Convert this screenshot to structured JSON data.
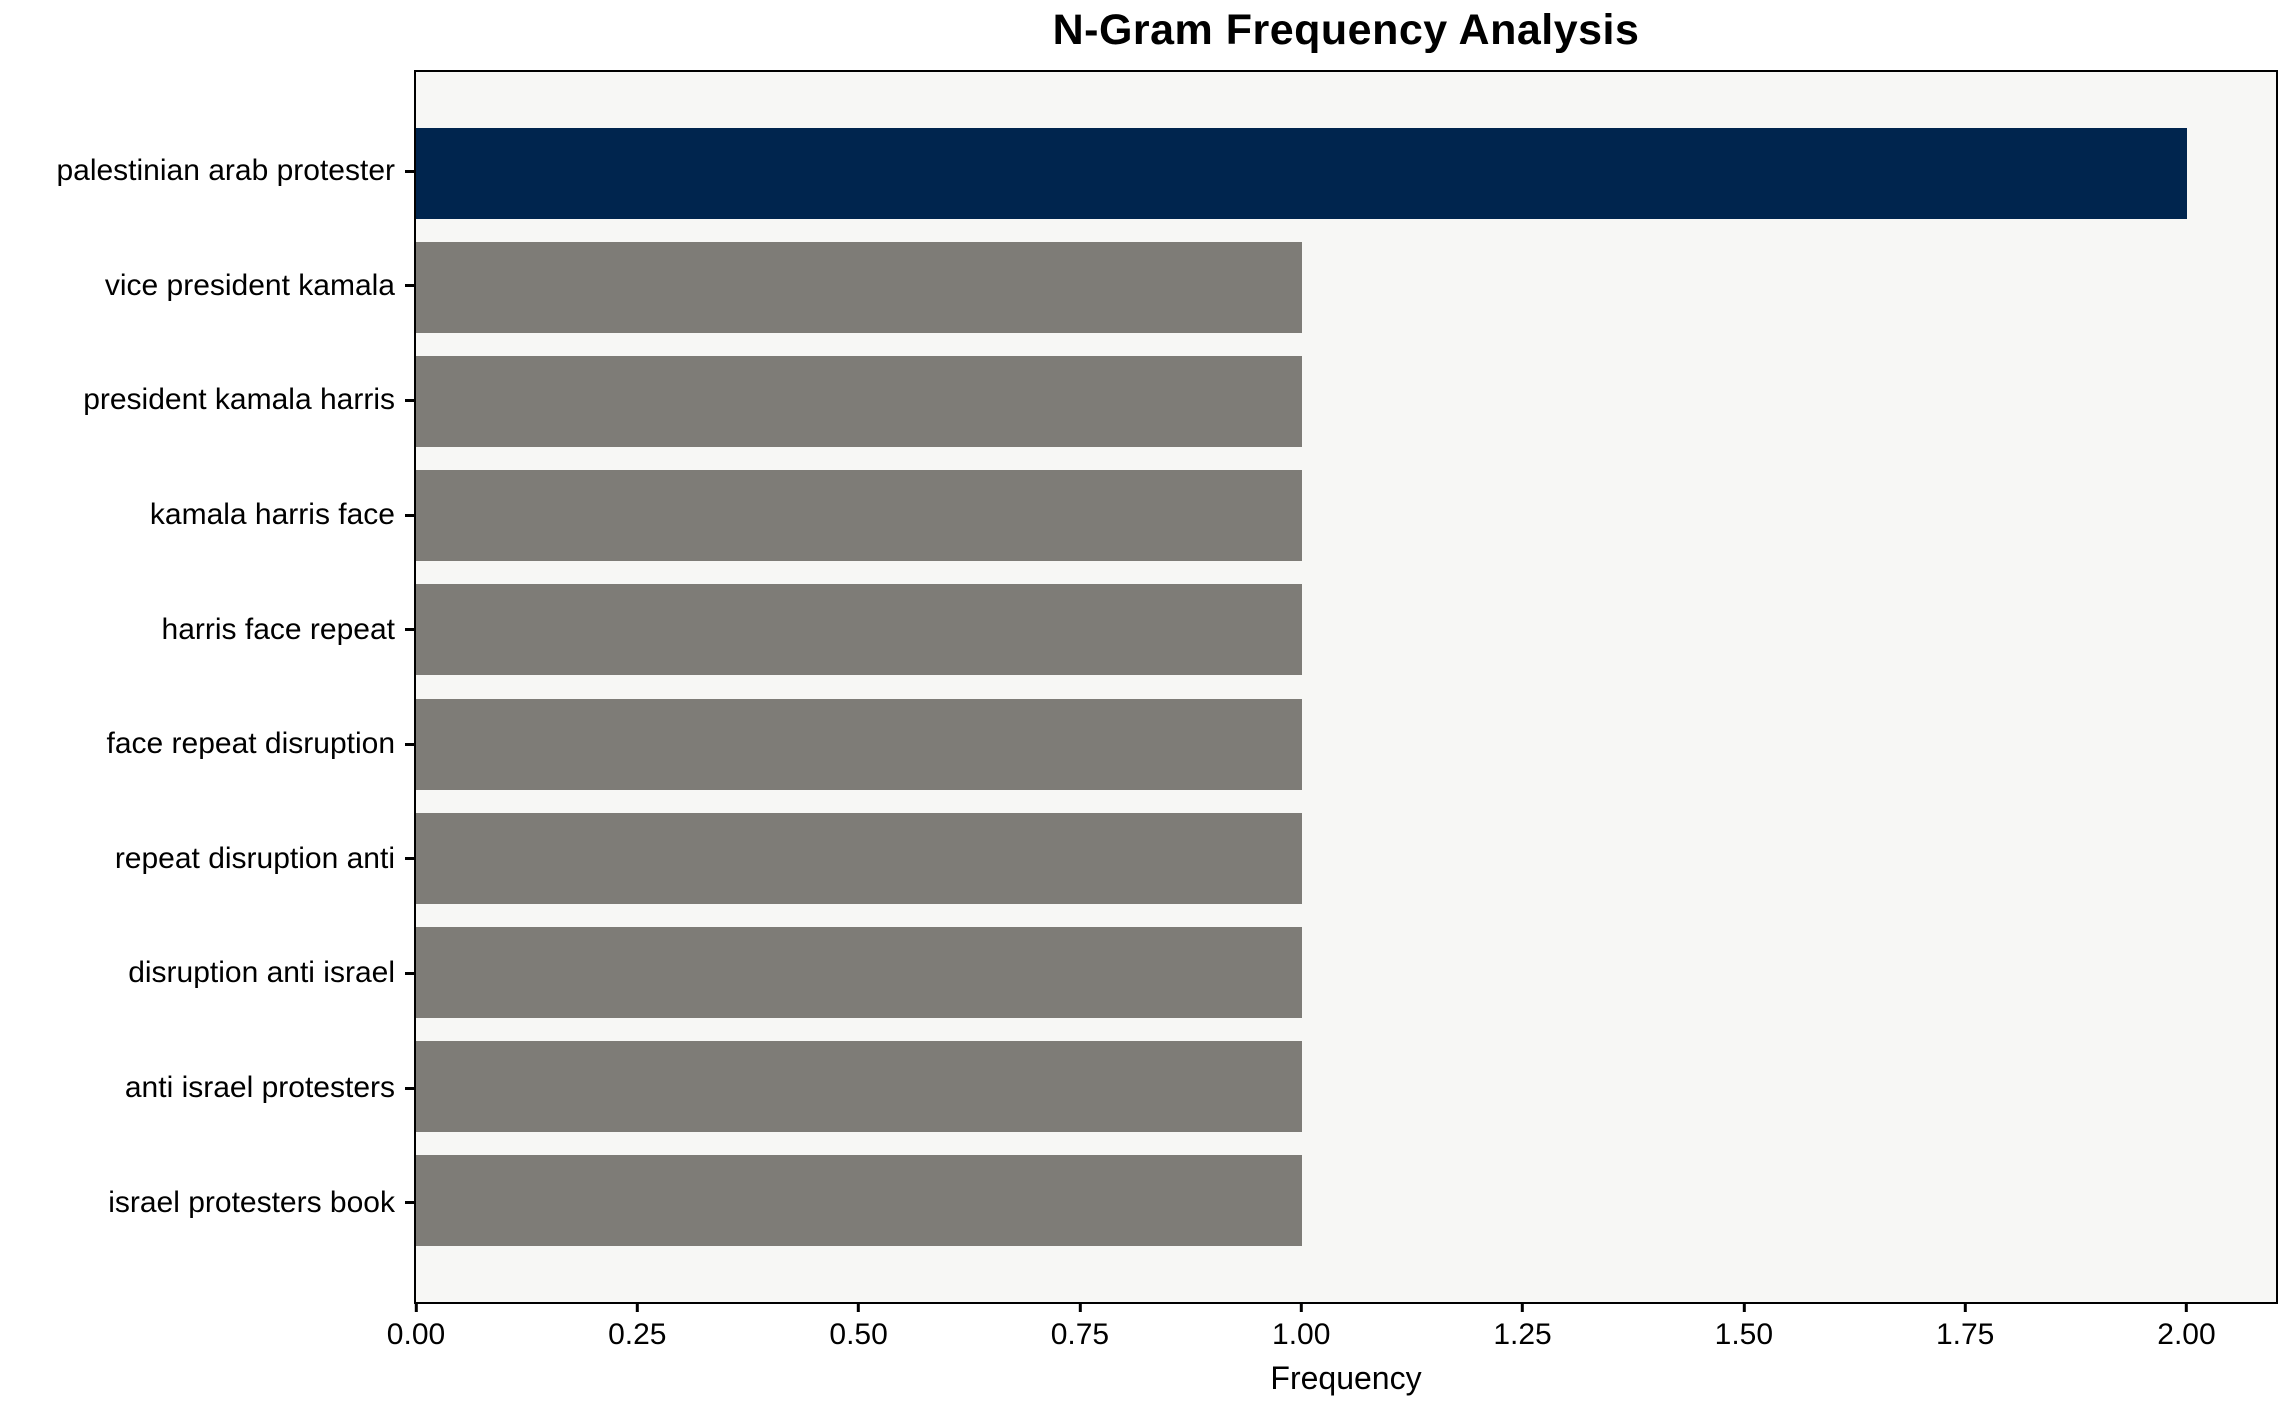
{
  "figure": {
    "title": "N-Gram Frequency Analysis",
    "xlabel": "Frequency"
  },
  "chart_data": {
    "type": "bar",
    "orientation": "horizontal",
    "title": "N-Gram Frequency Analysis",
    "xlabel": "Frequency",
    "ylabel": "",
    "categories": [
      "palestinian arab protester",
      "vice president kamala",
      "president kamala harris",
      "kamala harris face",
      "harris face repeat",
      "face repeat disruption",
      "repeat disruption anti",
      "disruption anti israel",
      "anti israel protesters",
      "israel protesters book"
    ],
    "values": [
      2.0,
      1.0,
      1.0,
      1.0,
      1.0,
      1.0,
      1.0,
      1.0,
      1.0,
      1.0
    ],
    "bar_colors": [
      "#00254e",
      "#7e7c77",
      "#7e7c77",
      "#7e7c77",
      "#7e7c77",
      "#7e7c77",
      "#7e7c77",
      "#7e7c77",
      "#7e7c77",
      "#7e7c77"
    ],
    "highlight_color": "#00254e",
    "default_color": "#7e7c77",
    "xlim": [
      0,
      2.1
    ],
    "xticks": [
      0,
      0.25,
      0.5,
      0.75,
      1.0,
      1.25,
      1.5,
      1.75,
      2.0
    ],
    "xtick_labels": [
      "0.00",
      "0.25",
      "0.50",
      "0.75",
      "1.00",
      "1.25",
      "1.50",
      "1.75",
      "2.00"
    ],
    "grid": false,
    "legend_position": "none",
    "plot_bg": "#f7f7f5",
    "figure_bg": "#ffffff",
    "spine_color": "#000000",
    "text_color": "#000000"
  }
}
